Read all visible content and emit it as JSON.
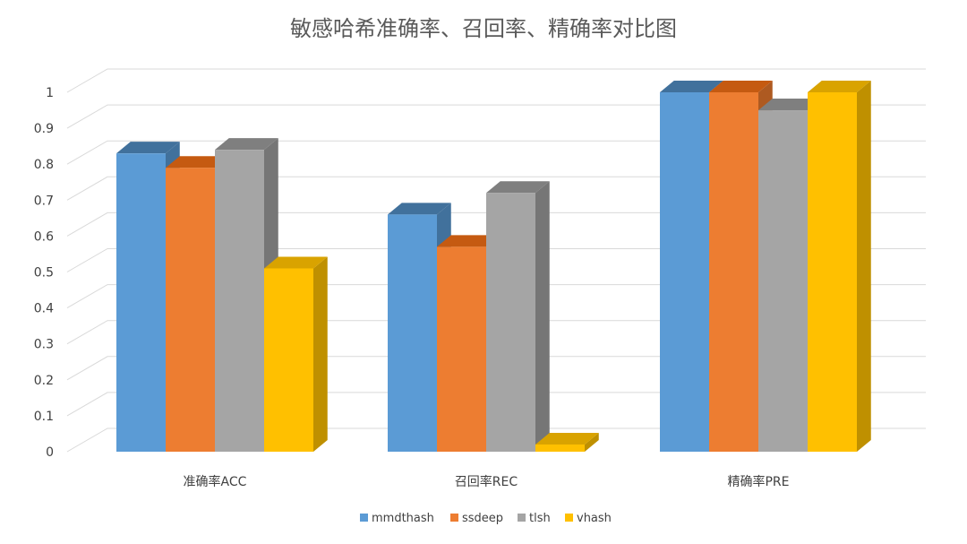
{
  "chart_data": {
    "type": "bar",
    "title": "敏感哈希准确率、召回率、精确率对比图",
    "categories": [
      "准确率ACC",
      "召回率REC",
      "精确率PRE"
    ],
    "series": [
      {
        "name": "mmdthash",
        "values": [
          0.83,
          0.66,
          1.0
        ]
      },
      {
        "name": "ssdeep",
        "values": [
          0.79,
          0.57,
          1.0
        ]
      },
      {
        "name": "tlsh",
        "values": [
          0.84,
          0.72,
          0.95
        ]
      },
      {
        "name": "vhash",
        "values": [
          0.51,
          0.02,
          1.0
        ]
      }
    ],
    "ylim": [
      0,
      1
    ],
    "yticks": [
      "0",
      "0.1",
      "0.2",
      "0.3",
      "0.4",
      "0.5",
      "0.6",
      "0.7",
      "0.8",
      "0.9",
      "1"
    ],
    "grid": true,
    "legend": "bottom",
    "colors": {
      "mmdthash": {
        "front": "#5b9bd5",
        "top": "#41719c",
        "side": "#41719c"
      },
      "ssdeep": {
        "front": "#ed7d31",
        "top": "#c55a11",
        "side": "#ae5a21"
      },
      "tlsh": {
        "front": "#a5a5a5",
        "top": "#7f7f7f",
        "side": "#767676"
      },
      "vhash": {
        "front": "#ffc000",
        "top": "#d9a300",
        "side": "#bf9000"
      }
    }
  }
}
